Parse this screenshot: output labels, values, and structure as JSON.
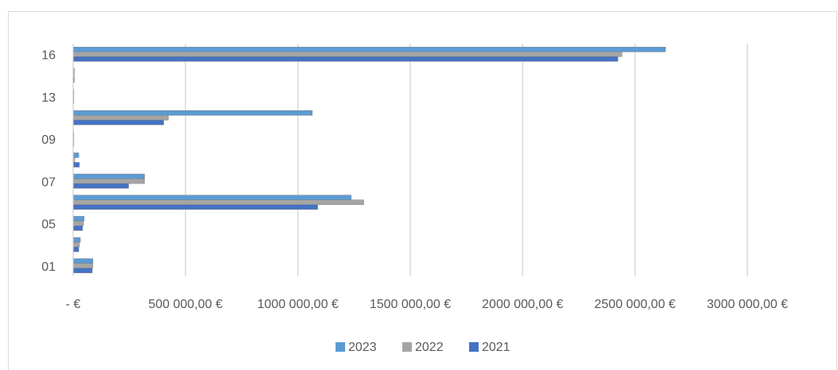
{
  "chart_data": {
    "type": "bar",
    "orientation": "horizontal",
    "categories": [
      "01",
      null,
      "05",
      null,
      "07",
      null,
      "09",
      null,
      "13",
      null,
      "16"
    ],
    "series": [
      {
        "name": "2023",
        "color": "#5b9bd5",
        "values": [
          88000,
          32000,
          49000,
          1237000,
          318000,
          25000,
          3000,
          1064000,
          3000,
          5000,
          2636000
        ]
      },
      {
        "name": "2022",
        "color": "#a5a5a5",
        "values": [
          88000,
          28000,
          46000,
          1293000,
          318000,
          7000,
          3000,
          424000,
          3000,
          5000,
          2442000
        ]
      },
      {
        "name": "2021",
        "color": "#4472c4",
        "values": [
          85000,
          25000,
          42000,
          1088000,
          247000,
          28000,
          3000,
          403000,
          3000,
          5000,
          2424000
        ]
      }
    ],
    "xlim": [
      0,
      3000000
    ],
    "xticks": [
      {
        "value": 0,
        "label": "-   €"
      },
      {
        "value": 500000,
        "label": "500 000,00 €"
      },
      {
        "value": 1000000,
        "label": "1000 000,00 €"
      },
      {
        "value": 1500000,
        "label": "1500 000,00 €"
      },
      {
        "value": 2000000,
        "label": "2000 000,00 €"
      },
      {
        "value": 2500000,
        "label": "2500 000,00 €"
      },
      {
        "value": 3000000,
        "label": "3000 000,00 €"
      }
    ],
    "grid": true,
    "legend": "bottom"
  }
}
